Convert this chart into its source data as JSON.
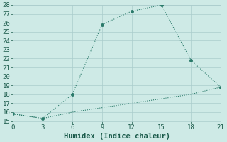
{
  "xlabel": "Humidex (Indice chaleur)",
  "line1_x": [
    0,
    3,
    6,
    9,
    12,
    15,
    18,
    21
  ],
  "line1_y": [
    15.8,
    15.3,
    18.0,
    25.8,
    27.3,
    28.0,
    21.8,
    18.8
  ],
  "line2_x": [
    0,
    3,
    6,
    9,
    12,
    15,
    18,
    21
  ],
  "line2_y": [
    15.8,
    15.3,
    16.0,
    16.5,
    17.0,
    17.5,
    18.0,
    18.8
  ],
  "line_color": "#2a7a6a",
  "bg_color": "#ceeae6",
  "grid_color": "#aacccc",
  "xlim": [
    0,
    21
  ],
  "ylim": [
    15,
    28
  ],
  "xticks": [
    0,
    3,
    6,
    9,
    12,
    15,
    18,
    21
  ],
  "yticks": [
    15,
    16,
    17,
    18,
    19,
    20,
    21,
    22,
    23,
    24,
    25,
    26,
    27,
    28
  ],
  "font_color": "#1a5a4a",
  "xlabel_fontsize": 7.5,
  "tick_fontsize": 6.5
}
